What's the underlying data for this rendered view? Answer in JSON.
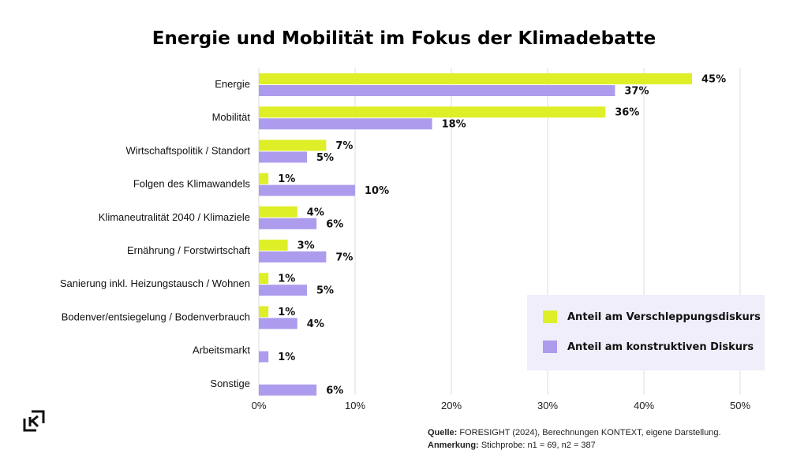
{
  "chart_data": {
    "type": "bar",
    "orientation": "horizontal",
    "title": "Energie und Mobilität im Fokus der Klimadebatte",
    "categories": [
      "Energie",
      "Mobilität",
      "Wirtschaftspolitik / Standort",
      "Folgen des Klimawandels",
      "Klimaneutralität 2040 / Klimaziele",
      "Ernährung / Forstwirtschaft",
      "Sanierung inkl. Heizungstausch / Wohnen",
      "Bodenver/entsiegelung / Bodenverbrauch",
      "Arbeitsmarkt",
      "Sonstige"
    ],
    "series": [
      {
        "name": "Anteil am Verschleppungsdiskurs",
        "color": "#deef28",
        "values": [
          45,
          36,
          7,
          1,
          4,
          3,
          1,
          1,
          null,
          null
        ]
      },
      {
        "name": "Anteil am konstruktiven Diskurs",
        "color": "#ad9ced",
        "values": [
          37,
          18,
          5,
          10,
          6,
          7,
          5,
          4,
          1,
          6
        ]
      }
    ],
    "xlim": [
      0,
      50
    ],
    "xticks": [
      0,
      10,
      20,
      30,
      40,
      50
    ],
    "xtick_labels": [
      "0%",
      "10%",
      "20%",
      "30%",
      "40%",
      "50%"
    ],
    "value_suffix": "%",
    "grid": true,
    "legend_position": "bottom-right"
  },
  "logo": {
    "icon": "kontext-logo-icon"
  },
  "source": {
    "quelle_label": "Quelle:",
    "quelle_text": "FORESIGHT (2024), Berechnungen KONTEXT, eigene Darstellung.",
    "anmerkung_label": "Anmerkung:",
    "anmerkung_text": "Stichprobe: n1 = 69, n2 = 387"
  }
}
